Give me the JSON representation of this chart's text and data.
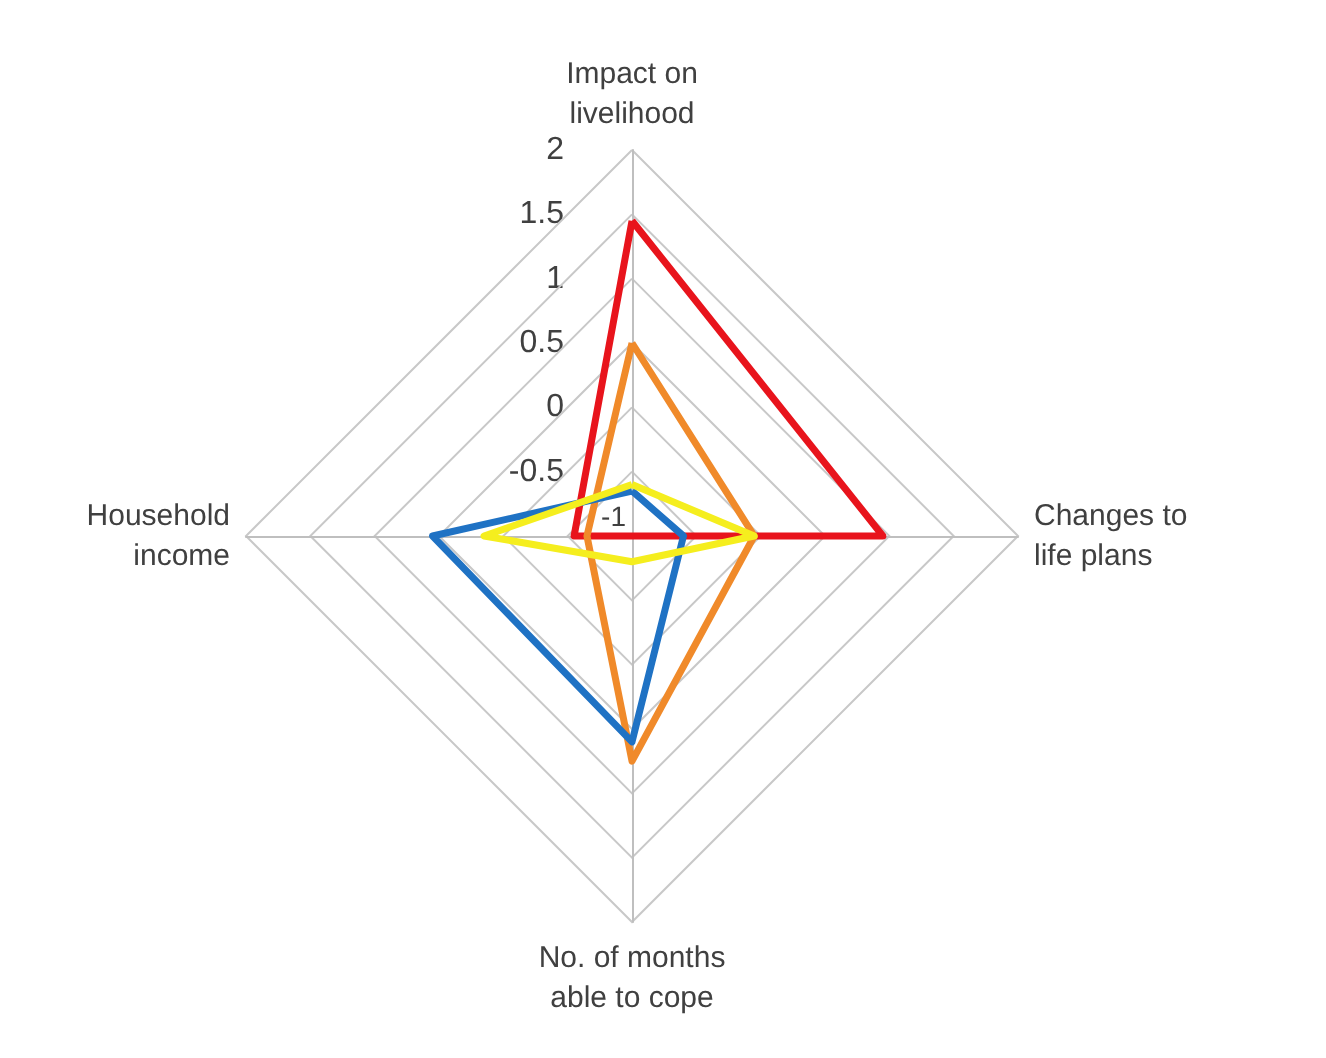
{
  "chart_data": {
    "type": "radar",
    "categories": [
      "Impact on livelihood",
      "Changes to life plans",
      "No. of months able to cope",
      "Household income"
    ],
    "series": [
      {
        "color": "#e8141c",
        "values": [
          1.45,
          0.95,
          -1,
          -0.55
        ]
      },
      {
        "color": "#f08a2a",
        "values": [
          0.5,
          -0.05,
          0.75,
          -0.65
        ]
      },
      {
        "color": "#1f72c4",
        "values": [
          -0.65,
          -0.6,
          0.6,
          0.55
        ]
      },
      {
        "color": "#f5ee1e",
        "values": [
          -0.6,
          -0.05,
          -0.8,
          0.15
        ]
      }
    ],
    "ylim": [
      -1,
      2
    ],
    "yticks": [
      -1,
      -0.5,
      0,
      0.5,
      1,
      1.5,
      2
    ],
    "grid": true,
    "marker": "none",
    "line_style": "solid"
  }
}
